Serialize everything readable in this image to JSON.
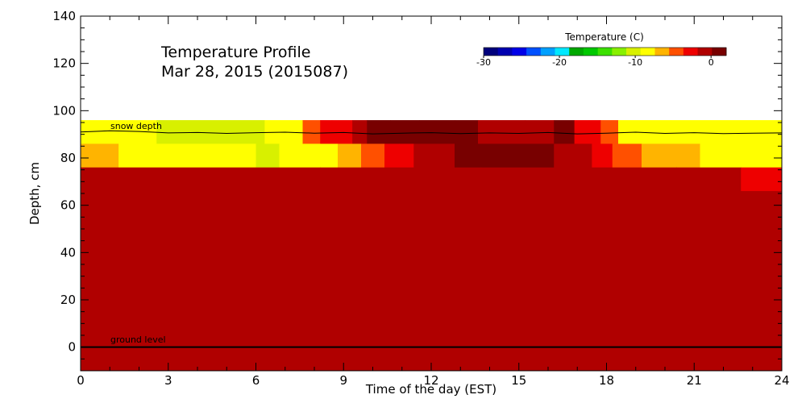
{
  "chart_data": {
    "type": "heatmap",
    "title": [
      "Temperature Profile",
      "Mar 28, 2015 (2015087)"
    ],
    "xlabel": "Time of the day (EST)",
    "ylabel": "Depth, cm",
    "xlim": [
      0,
      24
    ],
    "ylim": [
      -10,
      140
    ],
    "x_ticks": [
      "0",
      "3",
      "6",
      "9",
      "12",
      "15",
      "18",
      "21",
      "24"
    ],
    "y_ticks": [
      "0",
      "20",
      "40",
      "60",
      "80",
      "100",
      "120",
      "140"
    ],
    "colorbar": {
      "title": "Temperature (C)",
      "range": [
        -30,
        2
      ],
      "tick_values": [
        -30,
        -20,
        -10,
        0
      ],
      "tick_labels": [
        "-30",
        "-20",
        "-10",
        "0"
      ],
      "colors": [
        "#00007c",
        "#0000b0",
        "#0000e8",
        "#0050ff",
        "#00a0ff",
        "#00e8ff",
        "#00a800",
        "#00c800",
        "#3ce000",
        "#88f000",
        "#d8f000",
        "#ffff00",
        "#ffb400",
        "#ff5000",
        "#ee0000",
        "#b00000",
        "#780000"
      ]
    },
    "layers": [
      {
        "depth_range": [
          86,
          96
        ],
        "segments": [
          {
            "x0": 0,
            "x1": 2.6,
            "temp": -8
          },
          {
            "x0": 2.6,
            "x1": 6.3,
            "temp": -9.5
          },
          {
            "x0": 6.3,
            "x1": 7.6,
            "temp": -8
          },
          {
            "x0": 7.6,
            "x1": 8.2,
            "temp": -5
          },
          {
            "x0": 8.2,
            "x1": 8.6,
            "temp": -3
          },
          {
            "x0": 8.6,
            "x1": 9.3,
            "temp": -2
          },
          {
            "x0": 9.3,
            "x1": 9.8,
            "temp": -1
          },
          {
            "x0": 9.8,
            "x1": 10.6,
            "temp": 0.3
          },
          {
            "x0": 10.6,
            "x1": 11.6,
            "temp": 1
          },
          {
            "x0": 11.6,
            "x1": 12.8,
            "temp": 1.6
          },
          {
            "x0": 12.8,
            "x1": 13.6,
            "temp": 1
          },
          {
            "x0": 13.6,
            "x1": 15.2,
            "temp": 0
          },
          {
            "x0": 15.2,
            "x1": 16.2,
            "temp": -0.5
          },
          {
            "x0": 16.2,
            "x1": 16.9,
            "temp": 0.5
          },
          {
            "x0": 16.9,
            "x1": 17.4,
            "temp": -2
          },
          {
            "x0": 17.4,
            "x1": 17.8,
            "temp": -3
          },
          {
            "x0": 17.8,
            "x1": 18.4,
            "temp": -5
          },
          {
            "x0": 18.4,
            "x1": 20.2,
            "temp": -8
          },
          {
            "x0": 20.2,
            "x1": 24,
            "temp": -9
          }
        ]
      },
      {
        "depth_range": [
          76,
          86
        ],
        "segments": [
          {
            "x0": 0,
            "x1": 1.3,
            "temp": -7
          },
          {
            "x0": 1.3,
            "x1": 6.0,
            "temp": -8
          },
          {
            "x0": 6.0,
            "x1": 6.8,
            "temp": -9.5
          },
          {
            "x0": 6.8,
            "x1": 8.8,
            "temp": -8
          },
          {
            "x0": 8.8,
            "x1": 9.6,
            "temp": -7
          },
          {
            "x0": 9.6,
            "x1": 10.4,
            "temp": -5
          },
          {
            "x0": 10.4,
            "x1": 10.9,
            "temp": -3
          },
          {
            "x0": 10.9,
            "x1": 11.4,
            "temp": -2
          },
          {
            "x0": 11.4,
            "x1": 12.8,
            "temp": 0
          },
          {
            "x0": 12.8,
            "x1": 13.6,
            "temp": 0.5
          },
          {
            "x0": 13.6,
            "x1": 16.2,
            "temp": 1.2
          },
          {
            "x0": 16.2,
            "x1": 17.0,
            "temp": 0
          },
          {
            "x0": 17.0,
            "x1": 17.5,
            "temp": -1
          },
          {
            "x0": 17.5,
            "x1": 18.2,
            "temp": -2
          },
          {
            "x0": 18.2,
            "x1": 19.2,
            "temp": -5
          },
          {
            "x0": 19.2,
            "x1": 21.2,
            "temp": -7
          },
          {
            "x0": 21.2,
            "x1": 24,
            "temp": -8
          }
        ]
      },
      {
        "depth_range": [
          66,
          76
        ],
        "segments": [
          {
            "x0": 0,
            "x1": 8.2,
            "temp": 0
          },
          {
            "x0": 8.2,
            "x1": 13.7,
            "temp": -1
          },
          {
            "x0": 13.7,
            "x1": 20.4,
            "temp": 0
          },
          {
            "x0": 20.4,
            "x1": 22.6,
            "temp": -1
          },
          {
            "x0": 22.6,
            "x1": 24,
            "temp": -2
          }
        ]
      },
      {
        "depth_range": [
          -10,
          66
        ],
        "segments": [
          {
            "x0": 0,
            "x1": 24,
            "temp": 0
          }
        ]
      }
    ],
    "snow_depth_line": {
      "label": "snow depth",
      "x": [
        0,
        1,
        2,
        3,
        4,
        5,
        6,
        7,
        8,
        9,
        10,
        11,
        12,
        13,
        14,
        15,
        16,
        17,
        18,
        19,
        20,
        21,
        22,
        23,
        24
      ],
      "y": [
        91,
        91.5,
        91.2,
        90.6,
        90.8,
        90.4,
        90.7,
        90.9,
        90.5,
        90.8,
        90.2,
        90.5,
        90.7,
        90.3,
        90.6,
        90.4,
        90.8,
        90.2,
        90.5,
        90.9,
        90.4,
        90.7,
        90.3,
        90.5,
        90.6
      ]
    },
    "ground_level_line": {
      "label": "ground level",
      "y": 0
    }
  }
}
